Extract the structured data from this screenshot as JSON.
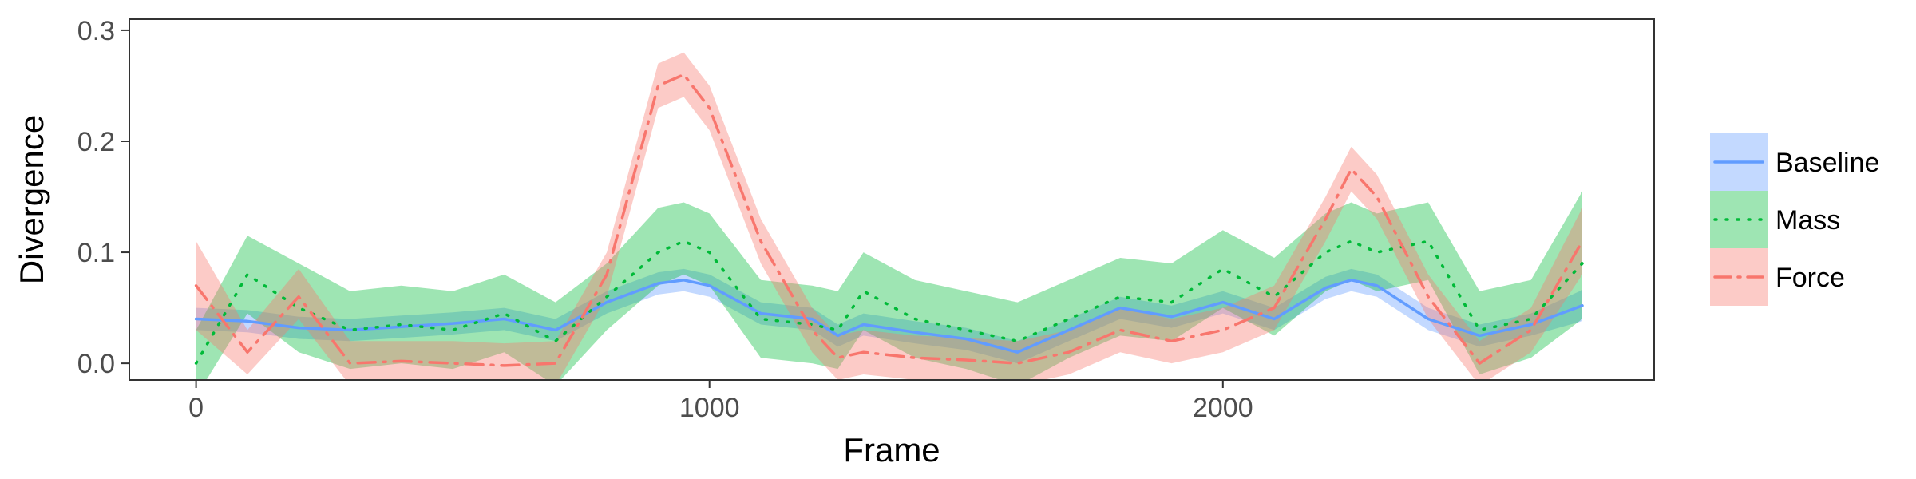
{
  "chart_data": {
    "type": "line",
    "xlabel": "Frame",
    "ylabel": "Divergence",
    "xlim": [
      -130,
      2840
    ],
    "ylim": [
      -0.015,
      0.31
    ],
    "x_ticks": [
      0,
      1000,
      2000
    ],
    "y_ticks": [
      0.0,
      0.1,
      0.2,
      0.3
    ],
    "x_tick_labels": [
      "0",
      "1000",
      "2000"
    ],
    "y_tick_labels": [
      "0.0",
      "0.1",
      "0.2",
      "0.3"
    ],
    "grid": false,
    "legend_position": "right",
    "x": [
      0,
      100,
      200,
      300,
      400,
      500,
      600,
      700,
      800,
      900,
      950,
      1000,
      1100,
      1200,
      1250,
      1300,
      1400,
      1500,
      1600,
      1700,
      1800,
      1900,
      2000,
      2100,
      2200,
      2250,
      2300,
      2400,
      2500,
      2600,
      2700
    ],
    "series": [
      {
        "name": "Baseline",
        "color": "#619CFF",
        "line_style": "solid",
        "values": [
          0.04,
          0.038,
          0.032,
          0.03,
          0.033,
          0.036,
          0.04,
          0.03,
          0.055,
          0.072,
          0.075,
          0.07,
          0.045,
          0.04,
          0.025,
          0.035,
          0.028,
          0.022,
          0.01,
          0.03,
          0.05,
          0.042,
          0.055,
          0.04,
          0.068,
          0.075,
          0.07,
          0.04,
          0.025,
          0.035,
          0.052
        ],
        "lower": [
          0.03,
          0.028,
          0.022,
          0.02,
          0.023,
          0.026,
          0.03,
          0.02,
          0.045,
          0.062,
          0.065,
          0.06,
          0.035,
          0.03,
          0.015,
          0.025,
          0.018,
          0.012,
          0.0,
          0.02,
          0.04,
          0.032,
          0.045,
          0.03,
          0.058,
          0.065,
          0.06,
          0.03,
          0.015,
          0.025,
          0.038
        ],
        "upper": [
          0.05,
          0.048,
          0.042,
          0.04,
          0.043,
          0.046,
          0.05,
          0.04,
          0.065,
          0.082,
          0.085,
          0.08,
          0.055,
          0.05,
          0.035,
          0.045,
          0.038,
          0.032,
          0.02,
          0.04,
          0.06,
          0.052,
          0.065,
          0.05,
          0.078,
          0.085,
          0.08,
          0.05,
          0.035,
          0.045,
          0.066
        ]
      },
      {
        "name": "Mass",
        "color": "#00BA38",
        "line_style": "dotted",
        "values": [
          0.0,
          0.08,
          0.05,
          0.03,
          0.035,
          0.03,
          0.045,
          0.02,
          0.06,
          0.1,
          0.11,
          0.1,
          0.04,
          0.035,
          0.03,
          0.065,
          0.04,
          0.03,
          0.02,
          0.04,
          0.06,
          0.055,
          0.085,
          0.06,
          0.1,
          0.11,
          0.1,
          0.11,
          0.03,
          0.04,
          0.09
        ],
        "lower": [
          -0.03,
          0.045,
          0.01,
          -0.005,
          0.0,
          -0.005,
          0.01,
          -0.02,
          0.03,
          0.07,
          0.08,
          0.07,
          0.005,
          0.0,
          -0.005,
          0.03,
          0.005,
          -0.005,
          -0.02,
          0.005,
          0.025,
          0.02,
          0.05,
          0.025,
          0.065,
          0.075,
          0.065,
          0.075,
          -0.01,
          0.005,
          0.04
        ],
        "upper": [
          0.03,
          0.115,
          0.09,
          0.065,
          0.07,
          0.065,
          0.08,
          0.055,
          0.09,
          0.14,
          0.145,
          0.135,
          0.075,
          0.07,
          0.065,
          0.1,
          0.075,
          0.065,
          0.055,
          0.075,
          0.095,
          0.09,
          0.12,
          0.095,
          0.135,
          0.145,
          0.135,
          0.145,
          0.065,
          0.075,
          0.155
        ]
      },
      {
        "name": "Force",
        "color": "#F8766D",
        "line_style": "dashdot",
        "values": [
          0.07,
          0.01,
          0.06,
          0.0,
          0.002,
          0.0,
          -0.002,
          0.0,
          0.08,
          0.25,
          0.26,
          0.23,
          0.11,
          0.03,
          0.005,
          0.01,
          0.005,
          0.003,
          0.0,
          0.01,
          0.03,
          0.02,
          0.03,
          0.05,
          0.13,
          0.175,
          0.15,
          0.06,
          0.0,
          0.03,
          0.11
        ],
        "lower": [
          0.03,
          -0.01,
          0.04,
          -0.02,
          -0.015,
          -0.02,
          -0.02,
          -0.02,
          0.06,
          0.23,
          0.24,
          0.21,
          0.09,
          0.01,
          -0.015,
          -0.01,
          -0.015,
          -0.018,
          -0.02,
          -0.01,
          0.01,
          0.0,
          0.01,
          0.03,
          0.11,
          0.155,
          0.13,
          0.04,
          -0.02,
          0.01,
          0.08
        ],
        "upper": [
          0.11,
          0.03,
          0.085,
          0.02,
          0.02,
          0.02,
          0.018,
          0.02,
          0.1,
          0.27,
          0.28,
          0.25,
          0.13,
          0.05,
          0.025,
          0.03,
          0.025,
          0.023,
          0.02,
          0.03,
          0.05,
          0.04,
          0.05,
          0.07,
          0.15,
          0.195,
          0.17,
          0.08,
          0.02,
          0.05,
          0.14
        ]
      }
    ]
  }
}
